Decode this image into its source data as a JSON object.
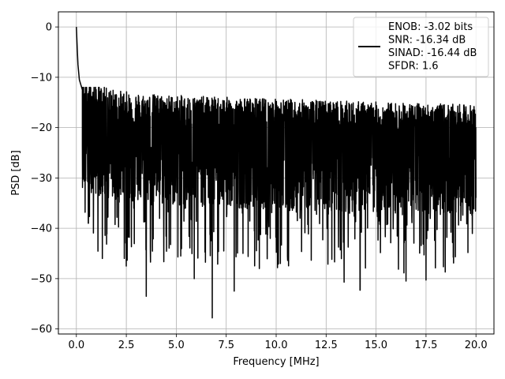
{
  "chart_data": {
    "type": "line",
    "xlabel": "Frequency [MHz]",
    "ylabel": "PSD [dB]",
    "xlim": [
      -0.9,
      20.9
    ],
    "ylim": [
      -61,
      3
    ],
    "xticks": [
      0.0,
      2.5,
      5.0,
      7.5,
      10.0,
      12.5,
      15.0,
      17.5,
      20.0
    ],
    "xtick_labels": [
      "0.0",
      "2.5",
      "5.0",
      "7.5",
      "10.0",
      "12.5",
      "15.0",
      "17.5",
      "20.0"
    ],
    "yticks": [
      0,
      -10,
      -20,
      -30,
      -40,
      -50,
      -60
    ],
    "ytick_labels": [
      "0",
      "−10",
      "−20",
      "−30",
      "−40",
      "−50",
      "−60"
    ],
    "grid": true,
    "legend_position": "top-right",
    "line_color": "#000000",
    "series": [
      {
        "legend_lines": [
          "ENOB: -3.02 bits",
          "SNR: -16.34 dB",
          "SINAD: -16.44 dB",
          "SFDR: 1.6"
        ],
        "baseline_db": -21,
        "noise_floor_range_db": [
          -58,
          -12
        ],
        "peak_points": [
          {
            "x": 0.0,
            "y": 0.0
          },
          {
            "x": 0.04,
            "y": -4.0
          },
          {
            "x": 0.08,
            "y": -7.5
          },
          {
            "x": 0.15,
            "y": -10.5
          },
          {
            "x": 0.3,
            "y": -12.5
          }
        ],
        "notable_dips": [
          {
            "x": 0.6,
            "y": -39
          },
          {
            "x": 1.3,
            "y": -46
          },
          {
            "x": 2.4,
            "y": -46
          },
          {
            "x": 2.5,
            "y": -47.5
          },
          {
            "x": 3.5,
            "y": -53.5
          },
          {
            "x": 5.9,
            "y": -50
          },
          {
            "x": 6.8,
            "y": -57.8
          },
          {
            "x": 7.9,
            "y": -52.5
          },
          {
            "x": 13.4,
            "y": -50.7
          },
          {
            "x": 14.2,
            "y": -52.3
          },
          {
            "x": 16.5,
            "y": -50.5
          },
          {
            "x": 17.5,
            "y": -50.3
          }
        ]
      }
    ]
  }
}
